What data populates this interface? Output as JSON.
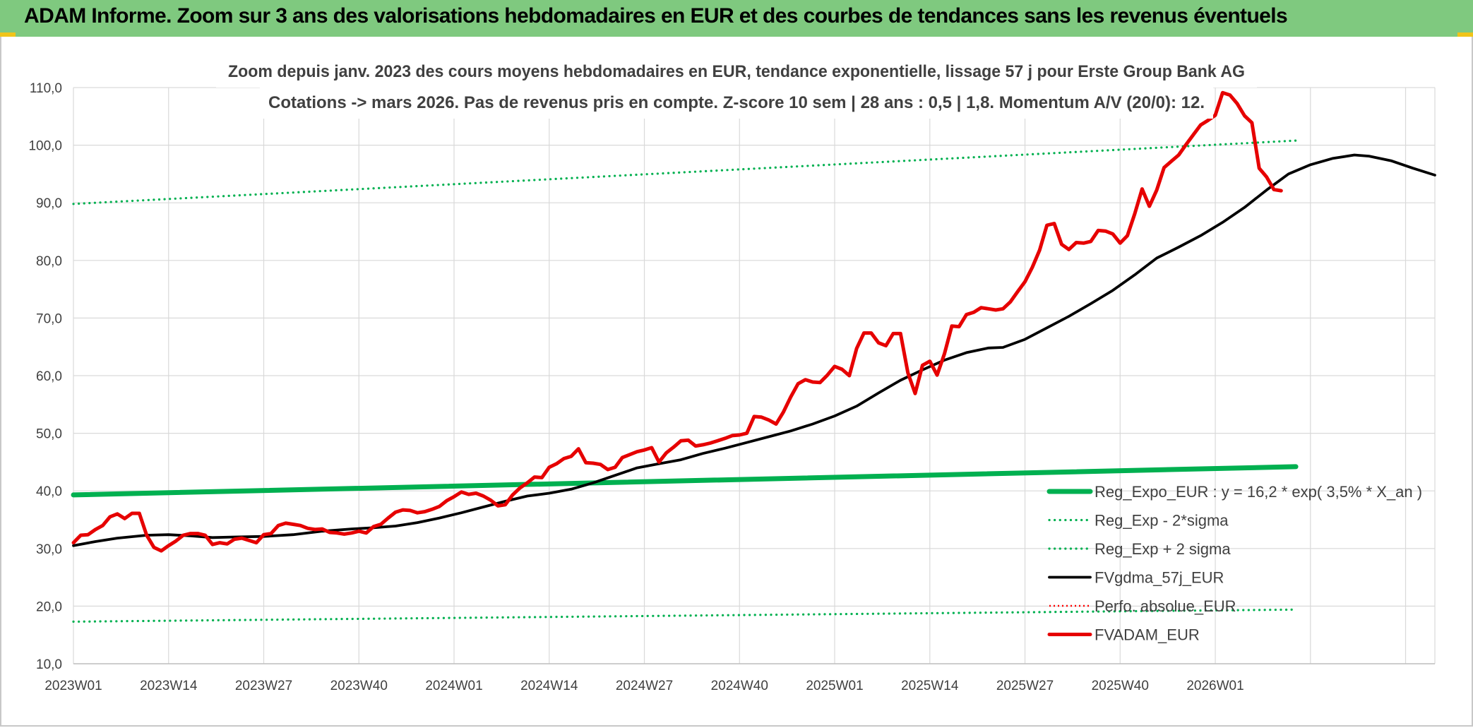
{
  "header": {
    "title": "ADAM Informe. Zoom sur 3 ans des valorisations hebdomadaires en EUR et des courbes de tendances sans les revenus éventuels"
  },
  "chart_data": {
    "type": "line",
    "title_line1": "Zoom depuis janv. 2023 des cours moyens hebdomadaires en EUR, tendance exponentielle, lissage 57 j pour Erste Group Bank AG",
    "title_line2": "Cotations -> mars 2026. Pas de revenus pris en compte. Z-score 10 sem | 28 ans : 0,5 | 1,8. Momentum A/V (20/0): 12.",
    "ylim": [
      10,
      110
    ],
    "yticks": [
      "10,0",
      "20,0",
      "30,0",
      "40,0",
      "50,0",
      "60,0",
      "70,0",
      "80,0",
      "90,0",
      "100,0",
      "110,0"
    ],
    "xticks": [
      "2023W01",
      "2023W14",
      "2023W27",
      "2023W40",
      "2024W01",
      "2024W14",
      "2024W27",
      "2024W40",
      "2025W01",
      "2025W14",
      "2025W27",
      "2025W40",
      "2026W01"
    ],
    "grid": true,
    "legend_position": "bottom-right",
    "colors": {
      "reg_expo": "#00b050",
      "reg_minus": "#00b050",
      "reg_plus": "#00b050",
      "gdma": "#000000",
      "perfo": "#ff0000",
      "fvadam": "#e60000"
    },
    "legend": [
      {
        "key": "reg_expo",
        "label": "Reg_Expo_EUR : y = 16,2 * exp( 3,5% *  X_an )"
      },
      {
        "key": "reg_minus",
        "label": "Reg_Exp - 2*sigma"
      },
      {
        "key": "reg_plus",
        "label": "Reg_Exp + 2 sigma"
      },
      {
        "key": "gdma",
        "label": "FVgdma_57j_EUR"
      },
      {
        "key": "perfo",
        "label": "Perfo. absolue_EUR"
      },
      {
        "key": "fvadam",
        "label": "FVADAM_EUR"
      }
    ],
    "series": [
      {
        "key": "reg_expo",
        "name": "Reg_Expo_EUR : y = 16,2 * exp( 3,5% *  X_an )",
        "points": [
          [
            0,
            39.3
          ],
          [
            167,
            44.2
          ]
        ]
      },
      {
        "key": "reg_minus",
        "name": "Reg_Exp - 2*sigma",
        "points": [
          [
            0,
            17.3
          ],
          [
            167,
            19.4
          ]
        ]
      },
      {
        "key": "reg_plus",
        "name": "Reg_Exp + 2 sigma",
        "points": [
          [
            0,
            89.8
          ],
          [
            167,
            100.8
          ]
        ]
      },
      {
        "key": "gdma",
        "name": "FVgdma_57j_EUR",
        "points": [
          [
            0,
            30.5
          ],
          [
            3,
            31.2
          ],
          [
            6,
            31.8
          ],
          [
            10,
            32.3
          ],
          [
            13,
            32.4
          ],
          [
            16,
            32.2
          ],
          [
            19,
            31.9
          ],
          [
            22,
            32.0
          ],
          [
            26,
            32.1
          ],
          [
            30,
            32.4
          ],
          [
            34,
            33.0
          ],
          [
            38,
            33.4
          ],
          [
            41,
            33.6
          ],
          [
            44,
            33.9
          ],
          [
            47,
            34.5
          ],
          [
            50,
            35.3
          ],
          [
            53,
            36.2
          ],
          [
            56,
            37.2
          ],
          [
            59,
            38.2
          ],
          [
            62,
            39.1
          ],
          [
            65,
            39.6
          ],
          [
            68,
            40.3
          ],
          [
            71,
            41.4
          ],
          [
            74,
            42.7
          ],
          [
            77,
            44.0
          ],
          [
            80,
            44.7
          ],
          [
            83,
            45.4
          ],
          [
            86,
            46.5
          ],
          [
            89,
            47.4
          ],
          [
            92,
            48.4
          ],
          [
            95,
            49.4
          ],
          [
            98,
            50.4
          ],
          [
            101,
            51.6
          ],
          [
            104,
            53.0
          ],
          [
            107,
            54.7
          ],
          [
            110,
            57.0
          ],
          [
            113,
            59.2
          ],
          [
            116,
            61.0
          ],
          [
            119,
            62.7
          ],
          [
            122,
            64.0
          ],
          [
            125,
            64.8
          ],
          [
            127,
            64.9
          ],
          [
            130,
            66.3
          ],
          [
            133,
            68.3
          ],
          [
            136,
            70.3
          ],
          [
            139,
            72.5
          ],
          [
            142,
            74.8
          ],
          [
            145,
            77.5
          ],
          [
            148,
            80.4
          ],
          [
            151,
            82.3
          ],
          [
            154,
            84.3
          ],
          [
            157,
            86.6
          ],
          [
            160,
            89.2
          ],
          [
            163,
            92.2
          ],
          [
            166,
            95.0
          ],
          [
            169,
            96.6
          ],
          [
            172,
            97.7
          ],
          [
            175,
            98.3
          ],
          [
            177,
            98.1
          ],
          [
            180,
            97.3
          ],
          [
            183,
            96.0
          ],
          [
            186,
            94.8
          ]
        ]
      },
      {
        "key": "perfo",
        "name": "Perfo. absolue_EUR",
        "points": []
      },
      {
        "key": "fvadam",
        "name": "FVADAM_EUR",
        "points": [
          [
            0,
            31.0
          ],
          [
            1,
            32.3
          ],
          [
            2,
            32.4
          ],
          [
            3,
            33.3
          ],
          [
            4,
            34.0
          ],
          [
            5,
            35.5
          ],
          [
            6,
            36.0
          ],
          [
            7,
            35.2
          ],
          [
            8,
            36.1
          ],
          [
            9,
            36.1
          ],
          [
            10,
            32.3
          ],
          [
            11,
            30.2
          ],
          [
            12,
            29.6
          ],
          [
            13,
            30.5
          ],
          [
            14,
            31.3
          ],
          [
            15,
            32.3
          ],
          [
            16,
            32.6
          ],
          [
            17,
            32.6
          ],
          [
            18,
            32.3
          ],
          [
            19,
            30.7
          ],
          [
            20,
            31.0
          ],
          [
            21,
            30.8
          ],
          [
            22,
            31.6
          ],
          [
            23,
            31.8
          ],
          [
            24,
            31.4
          ],
          [
            25,
            31.0
          ],
          [
            26,
            32.4
          ],
          [
            27,
            32.6
          ],
          [
            28,
            34.0
          ],
          [
            29,
            34.4
          ],
          [
            30,
            34.2
          ],
          [
            31,
            34.0
          ],
          [
            32,
            33.5
          ],
          [
            33,
            33.3
          ],
          [
            34,
            33.4
          ],
          [
            35,
            32.8
          ],
          [
            36,
            32.7
          ],
          [
            37,
            32.5
          ],
          [
            38,
            32.7
          ],
          [
            39,
            33.0
          ],
          [
            40,
            32.7
          ],
          [
            41,
            33.8
          ],
          [
            42,
            34.2
          ],
          [
            43,
            35.3
          ],
          [
            44,
            36.3
          ],
          [
            45,
            36.7
          ],
          [
            46,
            36.6
          ],
          [
            47,
            36.2
          ],
          [
            48,
            36.4
          ],
          [
            49,
            36.8
          ],
          [
            50,
            37.3
          ],
          [
            51,
            38.3
          ],
          [
            52,
            39.0
          ],
          [
            53,
            39.8
          ],
          [
            54,
            39.4
          ],
          [
            55,
            39.6
          ],
          [
            56,
            39.1
          ],
          [
            57,
            38.4
          ],
          [
            58,
            37.4
          ],
          [
            59,
            37.6
          ],
          [
            60,
            39.3
          ],
          [
            61,
            40.5
          ],
          [
            62,
            41.4
          ],
          [
            63,
            42.4
          ],
          [
            64,
            42.3
          ],
          [
            65,
            44.1
          ],
          [
            66,
            44.7
          ],
          [
            67,
            45.6
          ],
          [
            68,
            46.0
          ],
          [
            69,
            47.3
          ],
          [
            70,
            44.9
          ],
          [
            71,
            44.8
          ],
          [
            72,
            44.6
          ],
          [
            73,
            43.7
          ],
          [
            74,
            44.1
          ],
          [
            75,
            45.8
          ],
          [
            76,
            46.3
          ],
          [
            77,
            46.8
          ],
          [
            78,
            47.1
          ],
          [
            79,
            47.5
          ],
          [
            80,
            45.0
          ],
          [
            81,
            46.6
          ],
          [
            82,
            47.6
          ],
          [
            83,
            48.7
          ],
          [
            84,
            48.8
          ],
          [
            85,
            47.8
          ],
          [
            86,
            48.0
          ],
          [
            87,
            48.3
          ],
          [
            88,
            48.7
          ],
          [
            89,
            49.1
          ],
          [
            90,
            49.6
          ],
          [
            91,
            49.7
          ],
          [
            92,
            50.0
          ],
          [
            93,
            52.9
          ],
          [
            94,
            52.8
          ],
          [
            95,
            52.3
          ],
          [
            96,
            51.6
          ],
          [
            97,
            53.7
          ],
          [
            98,
            56.3
          ],
          [
            99,
            58.6
          ],
          [
            100,
            59.3
          ],
          [
            101,
            58.9
          ],
          [
            102,
            58.8
          ],
          [
            103,
            60.1
          ],
          [
            104,
            61.6
          ],
          [
            105,
            61.1
          ],
          [
            106,
            60.0
          ],
          [
            107,
            64.7
          ],
          [
            108,
            67.4
          ],
          [
            109,
            67.4
          ],
          [
            110,
            65.7
          ],
          [
            111,
            65.2
          ],
          [
            112,
            67.3
          ],
          [
            113,
            67.3
          ],
          [
            114,
            60.5
          ],
          [
            115,
            56.9
          ],
          [
            116,
            61.8
          ],
          [
            117,
            62.5
          ],
          [
            118,
            60.1
          ],
          [
            119,
            63.8
          ],
          [
            120,
            68.6
          ],
          [
            121,
            68.5
          ],
          [
            122,
            70.6
          ],
          [
            123,
            71.0
          ],
          [
            124,
            71.8
          ],
          [
            125,
            71.6
          ],
          [
            126,
            71.4
          ],
          [
            127,
            71.6
          ],
          [
            128,
            72.8
          ],
          [
            129,
            74.6
          ],
          [
            130,
            76.3
          ],
          [
            131,
            78.8
          ],
          [
            132,
            81.8
          ],
          [
            133,
            86.1
          ],
          [
            134,
            86.4
          ],
          [
            135,
            82.8
          ],
          [
            136,
            81.9
          ],
          [
            137,
            83.1
          ],
          [
            138,
            83.0
          ],
          [
            139,
            83.3
          ],
          [
            140,
            85.2
          ],
          [
            141,
            85.1
          ],
          [
            142,
            84.6
          ],
          [
            143,
            83.0
          ],
          [
            144,
            84.3
          ],
          [
            145,
            88.1
          ],
          [
            146,
            92.4
          ],
          [
            147,
            89.4
          ],
          [
            148,
            92.2
          ],
          [
            149,
            96.1
          ],
          [
            150,
            97.2
          ],
          [
            151,
            98.3
          ],
          [
            152,
            100.1
          ],
          [
            153,
            101.8
          ],
          [
            154,
            103.5
          ],
          [
            155,
            104.3
          ],
          [
            156,
            105.2
          ],
          [
            157,
            109.1
          ],
          [
            158,
            108.7
          ],
          [
            159,
            107.2
          ],
          [
            160,
            105.1
          ],
          [
            161,
            103.9
          ],
          [
            162,
            96.0
          ],
          [
            163,
            94.5
          ],
          [
            164,
            92.3
          ],
          [
            165,
            92.1
          ]
        ]
      }
    ]
  }
}
